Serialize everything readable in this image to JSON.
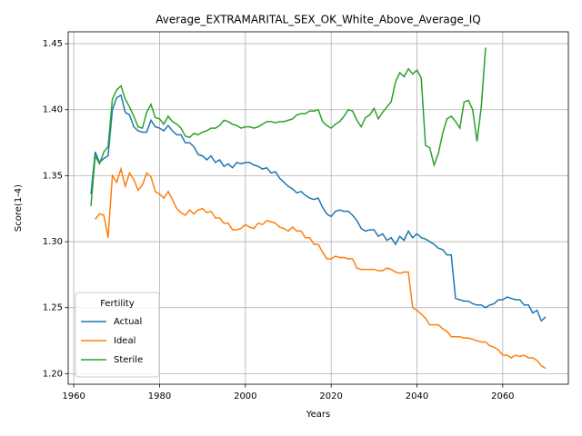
{
  "chart_data": {
    "type": "line",
    "title": "Average_EXTRAMARITAL_SEX_OK_White_Above_Average_IQ",
    "x_label": "Years",
    "y_label": "Score(1-4)",
    "legend_title": "Fertility",
    "legend_position": "lower left",
    "grid": true,
    "x": [
      1964,
      1965,
      1966,
      1967,
      1968,
      1969,
      1970,
      1971,
      1972,
      1973,
      1974,
      1975,
      1976,
      1977,
      1978,
      1979,
      1980,
      1981,
      1982,
      1983,
      1984,
      1985,
      1986,
      1987,
      1988,
      1989,
      1990,
      1991,
      1992,
      1993,
      1994,
      1995,
      1996,
      1997,
      1998,
      1999,
      2000,
      2001,
      2002,
      2003,
      2004,
      2005,
      2006,
      2007,
      2008,
      2009,
      2010,
      2011,
      2012,
      2013,
      2014,
      2015,
      2016,
      2017,
      2018,
      2019,
      2020,
      2021,
      2022,
      2023,
      2024,
      2025,
      2026,
      2027,
      2028,
      2029,
      2030,
      2031,
      2032,
      2033,
      2034,
      2035,
      2036,
      2037,
      2038,
      2039,
      2040,
      2041,
      2042,
      2043,
      2044,
      2045,
      2046,
      2047,
      2048,
      2049,
      2050,
      2051,
      2052,
      2053,
      2054,
      2055,
      2056,
      2057,
      2058,
      2059,
      2060,
      2061,
      2062,
      2063,
      2064,
      2065,
      2066,
      2067,
      2068,
      2069,
      2070
    ],
    "series": [
      {
        "name": "Actual",
        "color": "#1f77b4",
        "values": [
          1.336,
          1.368,
          1.36,
          1.363,
          1.365,
          1.4,
          1.409,
          1.411,
          1.398,
          1.396,
          1.387,
          1.384,
          1.383,
          1.383,
          1.392,
          1.387,
          1.386,
          1.384,
          1.388,
          1.384,
          1.381,
          1.381,
          1.375,
          1.375,
          1.372,
          1.366,
          1.365,
          1.362,
          1.365,
          1.36,
          1.362,
          1.357,
          1.359,
          1.356,
          1.36,
          1.359,
          1.36,
          1.36,
          1.358,
          1.357,
          1.355,
          1.356,
          1.352,
          1.353,
          1.348,
          1.345,
          1.342,
          1.34,
          1.337,
          1.338,
          1.335,
          1.333,
          1.332,
          1.333,
          1.326,
          1.321,
          1.319,
          1.323,
          1.324,
          1.323,
          1.323,
          1.32,
          1.316,
          1.31,
          1.308,
          1.309,
          1.309,
          1.304,
          1.306,
          1.301,
          1.303,
          1.298,
          1.304,
          1.301,
          1.308,
          1.303,
          1.306,
          1.303,
          1.302,
          1.3,
          1.298,
          1.295,
          1.294,
          1.29,
          1.29,
          1.257,
          1.256,
          1.255,
          1.255,
          1.253,
          1.252,
          1.252,
          1.25,
          1.252,
          1.253,
          1.256,
          1.256,
          1.258,
          1.257,
          1.256,
          1.256,
          1.252,
          1.252,
          1.246,
          1.248,
          1.24,
          1.243
        ]
      },
      {
        "name": "Ideal",
        "color": "#ff7f0e",
        "values": [
          null,
          1.317,
          1.321,
          1.32,
          1.303,
          1.35,
          1.345,
          1.355,
          1.342,
          1.352,
          1.347,
          1.339,
          1.343,
          1.352,
          1.349,
          1.338,
          1.336,
          1.333,
          1.338,
          1.332,
          1.325,
          1.322,
          1.32,
          1.324,
          1.321,
          1.324,
          1.325,
          1.322,
          1.323,
          1.318,
          1.318,
          1.314,
          1.314,
          1.309,
          1.309,
          1.31,
          1.313,
          1.311,
          1.31,
          1.314,
          1.313,
          1.316,
          1.315,
          1.314,
          1.311,
          1.31,
          1.308,
          1.311,
          1.308,
          1.308,
          1.303,
          1.303,
          1.298,
          1.298,
          1.292,
          1.287,
          1.287,
          1.289,
          1.288,
          1.288,
          1.287,
          1.287,
          1.28,
          1.279,
          1.279,
          1.279,
          1.279,
          1.278,
          1.278,
          1.28,
          1.279,
          1.277,
          1.276,
          1.277,
          1.277,
          1.25,
          1.248,
          1.245,
          1.242,
          1.237,
          1.237,
          1.237,
          1.234,
          1.232,
          1.228,
          1.228,
          1.228,
          1.227,
          1.227,
          1.226,
          1.225,
          1.224,
          1.224,
          1.221,
          1.22,
          1.218,
          1.214,
          1.214,
          1.212,
          1.214,
          1.213,
          1.214,
          1.212,
          1.212,
          1.21,
          1.206,
          1.204
        ]
      },
      {
        "name": "Sterile",
        "color": "#2ca02c",
        "values": [
          1.327,
          1.365,
          1.359,
          1.368,
          1.372,
          1.408,
          1.415,
          1.418,
          1.408,
          1.402,
          1.395,
          1.387,
          1.386,
          1.398,
          1.404,
          1.394,
          1.393,
          1.389,
          1.395,
          1.391,
          1.389,
          1.386,
          1.38,
          1.379,
          1.382,
          1.381,
          1.383,
          1.384,
          1.386,
          1.386,
          1.388,
          1.392,
          1.391,
          1.389,
          1.388,
          1.386,
          1.387,
          1.387,
          1.386,
          1.387,
          1.389,
          1.391,
          1.391,
          1.39,
          1.391,
          1.391,
          1.392,
          1.393,
          1.396,
          1.397,
          1.397,
          1.399,
          1.399,
          1.4,
          1.391,
          1.388,
          1.386,
          1.389,
          1.391,
          1.395,
          1.4,
          1.399,
          1.392,
          1.387,
          1.394,
          1.396,
          1.401,
          1.393,
          1.398,
          1.402,
          1.406,
          1.421,
          1.428,
          1.425,
          1.431,
          1.427,
          1.43,
          1.424,
          1.373,
          1.371,
          1.358,
          1.367,
          1.382,
          1.393,
          1.395,
          1.391,
          1.386,
          1.406,
          1.407,
          1.4,
          1.376,
          1.402,
          1.447,
          null,
          null,
          null,
          null,
          null,
          null,
          null,
          null,
          null,
          null,
          null,
          null,
          null,
          null
        ]
      }
    ],
    "xlim": [
      1958.7,
      2075.3
    ],
    "xticks": [
      1960,
      1980,
      2000,
      2020,
      2040,
      2060
    ],
    "ylim": [
      1.192,
      1.459
    ],
    "yticks": [
      {
        "value": 1.2,
        "label": "1.20"
      },
      1.25,
      {
        "value": 1.3,
        "label": "1.30"
      },
      1.35,
      {
        "value": 1.4,
        "label": "1.40"
      },
      1.45
    ]
  }
}
